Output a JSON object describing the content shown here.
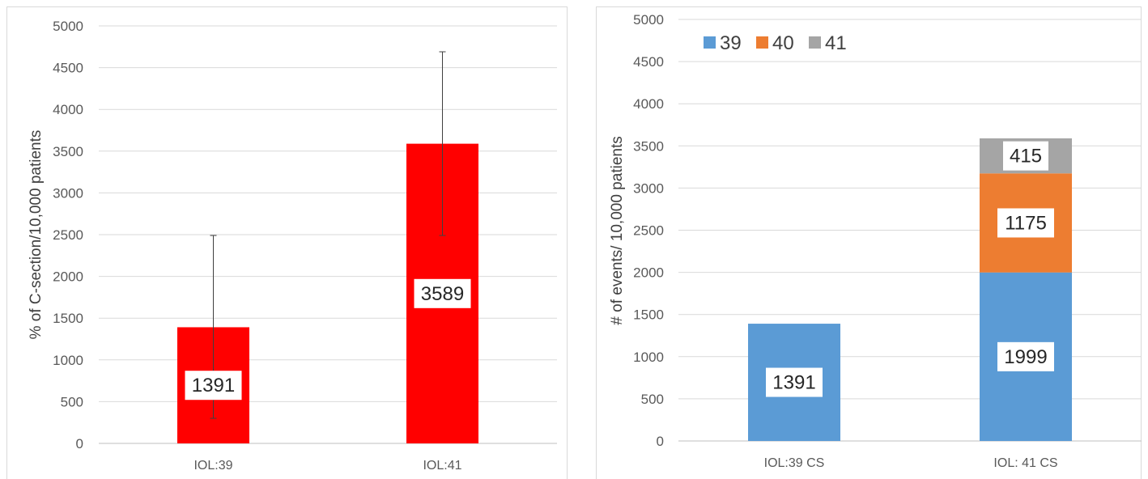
{
  "chart_data": [
    {
      "type": "bar",
      "categories": [
        "IOL:39",
        "IOL:41"
      ],
      "values": [
        1391,
        3589
      ],
      "error_bars": [
        [
          300,
          2490
        ],
        [
          2490,
          4690
        ]
      ],
      "data_labels": [
        "1391",
        "3589"
      ],
      "ylabel": "% of C-section/10,000 patients",
      "ylim": [
        0,
        5000
      ],
      "yticks": [
        "0",
        "500",
        "1000",
        "1500",
        "2000",
        "2500",
        "3000",
        "3500",
        "4000",
        "4500",
        "5000"
      ],
      "grid": true,
      "legend": "none",
      "colors": [
        "#ff0000"
      ]
    },
    {
      "type": "bar",
      "stacked": true,
      "categories": [
        "IOL:39 CS",
        "IOL: 41 CS"
      ],
      "series": [
        {
          "name": "39",
          "values": [
            1391,
            1999
          ],
          "color": "#5b9bd5"
        },
        {
          "name": "40",
          "values": [
            0,
            1175
          ],
          "color": "#ed7d31"
        },
        {
          "name": "41",
          "values": [
            0,
            415
          ],
          "color": "#a5a5a5"
        }
      ],
      "data_labels": [
        [
          "1391",
          "1999"
        ],
        [
          "",
          "1175"
        ],
        [
          "",
          "415"
        ]
      ],
      "ylabel": "# of events/ 10,000 patients",
      "ylim": [
        0,
        5000
      ],
      "yticks": [
        "0",
        "500",
        "1000",
        "1500",
        "2000",
        "2500",
        "3000",
        "3500",
        "4000",
        "4500",
        "5000"
      ],
      "grid": true,
      "legend": "top-left"
    }
  ]
}
